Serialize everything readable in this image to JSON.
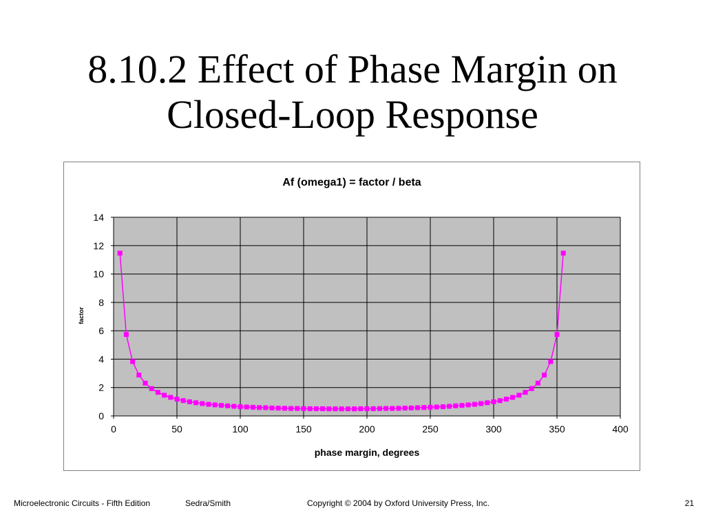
{
  "slide": {
    "title_line1": "8.10.2 Effect of Phase Margin on",
    "title_line2": "Closed-Loop Response"
  },
  "footer": {
    "book": "Microelectronic Circuits - Fifth Edition",
    "authors": "Sedra/Smith",
    "copyright": "Copyright © 2004 by Oxford University Press, Inc.",
    "page": "21"
  },
  "chart_data": {
    "type": "line",
    "title": "Af (omega1) = factor / beta",
    "xlabel": "phase margin, degrees",
    "ylabel": "factor",
    "xlim": [
      0,
      400
    ],
    "ylim": [
      0,
      14
    ],
    "xticks": [
      0,
      50,
      100,
      150,
      200,
      250,
      300,
      350,
      400
    ],
    "yticks": [
      0,
      2,
      4,
      6,
      8,
      10,
      12,
      14
    ],
    "grid": true,
    "legend": "none",
    "colors": {
      "series": "#ff00ff",
      "plot_background": "#c0c0c0",
      "gridline": "#000000"
    },
    "series": [
      {
        "x": [
          5,
          10,
          15,
          20,
          25,
          30,
          35,
          40,
          45,
          50,
          55,
          60,
          65,
          70,
          75,
          80,
          85,
          90,
          95,
          100,
          105,
          110,
          115,
          120,
          125,
          130,
          135,
          140,
          145,
          150,
          155,
          160,
          165,
          170,
          175,
          180,
          185,
          190,
          195,
          200,
          205,
          210,
          215,
          220,
          225,
          230,
          235,
          240,
          245,
          250,
          255,
          260,
          265,
          270,
          275,
          280,
          285,
          290,
          295,
          300,
          305,
          310,
          315,
          320,
          325,
          330,
          335,
          340,
          345,
          350,
          355
        ],
        "y": [
          11.47,
          5.74,
          3.83,
          2.88,
          2.31,
          1.93,
          1.66,
          1.46,
          1.31,
          1.18,
          1.08,
          1.0,
          0.93,
          0.87,
          0.82,
          0.78,
          0.74,
          0.71,
          0.68,
          0.65,
          0.63,
          0.61,
          0.59,
          0.58,
          0.56,
          0.55,
          0.54,
          0.53,
          0.53,
          0.52,
          0.51,
          0.51,
          0.51,
          0.5,
          0.5,
          0.5,
          0.5,
          0.5,
          0.51,
          0.51,
          0.51,
          0.52,
          0.53,
          0.53,
          0.54,
          0.55,
          0.56,
          0.58,
          0.59,
          0.61,
          0.63,
          0.65,
          0.68,
          0.71,
          0.74,
          0.78,
          0.82,
          0.87,
          0.93,
          1.0,
          1.08,
          1.18,
          1.31,
          1.46,
          1.66,
          1.93,
          2.31,
          2.88,
          3.83,
          5.74,
          11.47
        ]
      }
    ]
  }
}
